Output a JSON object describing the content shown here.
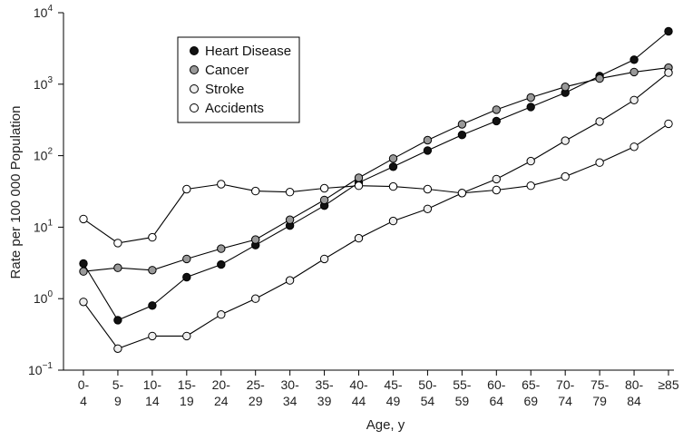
{
  "chart_data": {
    "type": "line",
    "yscale": "log",
    "ylabel": "Rate per 100 000 Population",
    "xlabel": "Age, y",
    "ylim": [
      0.1,
      10000
    ],
    "y_ticks": [
      {
        "value": 0.1,
        "base": "10",
        "exp": "−1"
      },
      {
        "value": 1,
        "base": "10",
        "exp": "0"
      },
      {
        "value": 10,
        "base": "10",
        "exp": "1"
      },
      {
        "value": 100,
        "base": "10",
        "exp": "2"
      },
      {
        "value": 1000,
        "base": "10",
        "exp": "3"
      },
      {
        "value": 10000,
        "base": "10",
        "exp": "4"
      }
    ],
    "categories": [
      {
        "line1": "0-",
        "line2": "4"
      },
      {
        "line1": "5-",
        "line2": "9"
      },
      {
        "line1": "10-",
        "line2": "14"
      },
      {
        "line1": "15-",
        "line2": "19"
      },
      {
        "line1": "20-",
        "line2": "24"
      },
      {
        "line1": "25-",
        "line2": "29"
      },
      {
        "line1": "30-",
        "line2": "34"
      },
      {
        "line1": "35-",
        "line2": "39"
      },
      {
        "line1": "40-",
        "line2": "44"
      },
      {
        "line1": "45-",
        "line2": "49"
      },
      {
        "line1": "50-",
        "line2": "54"
      },
      {
        "line1": "55-",
        "line2": "59"
      },
      {
        "line1": "60-",
        "line2": "64"
      },
      {
        "line1": "65-",
        "line2": "69"
      },
      {
        "line1": "70-",
        "line2": "74"
      },
      {
        "line1": "75-",
        "line2": "79"
      },
      {
        "line1": "80-",
        "line2": "84"
      },
      {
        "line1": "≥85",
        "line2": ""
      }
    ],
    "series": [
      {
        "name": "Heart Disease",
        "marker_fill": "#111111",
        "values": [
          3.1,
          0.5,
          0.8,
          2.0,
          3.0,
          5.6,
          10.5,
          20,
          42,
          70,
          118,
          195,
          305,
          480,
          760,
          1300,
          2200,
          5500
        ]
      },
      {
        "name": "Cancer",
        "marker_fill": "#999999",
        "values": [
          2.4,
          2.7,
          2.5,
          3.6,
          5.0,
          6.7,
          12.7,
          24,
          49,
          91,
          165,
          275,
          440,
          650,
          920,
          1200,
          1480,
          1700
        ]
      },
      {
        "name": "Stroke",
        "marker_fill": "#eeeeee",
        "values": [
          0.9,
          0.2,
          0.3,
          0.3,
          0.6,
          1.0,
          1.8,
          3.6,
          7.0,
          12.2,
          18,
          30,
          47,
          84,
          162,
          300,
          600,
          1450
        ]
      },
      {
        "name": "Accidents",
        "marker_fill": "#ffffff",
        "values": [
          13,
          6.0,
          7.2,
          34,
          40,
          32,
          31,
          35,
          38,
          37,
          34,
          30,
          33,
          38,
          51,
          80,
          133,
          280
        ]
      }
    ],
    "legend_position": "top-left",
    "grid": false
  }
}
